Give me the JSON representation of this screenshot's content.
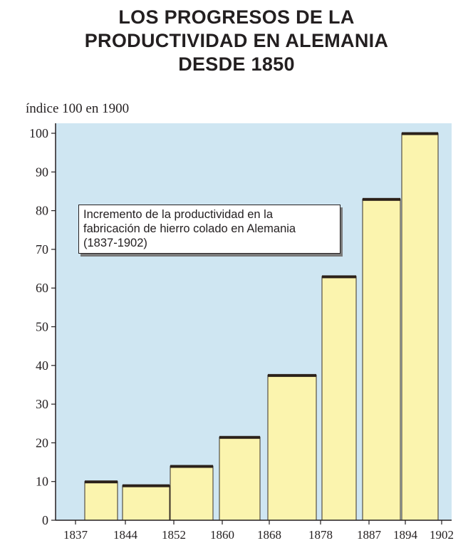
{
  "title_lines": [
    "LOS PROGRESOS DE LA",
    "PRODUCTIVIDAD EN ALEMANIA",
    "DESDE 1850"
  ],
  "chart_data": {
    "type": "bar",
    "title": "LOS PROGRESOS DE LA PRODUCTIVIDAD EN ALEMANIA DESDE 1850",
    "ylabel": "índice 100 en 1900",
    "xlabel": "",
    "ylim": [
      0,
      100
    ],
    "yticks": [
      0,
      10,
      20,
      30,
      40,
      50,
      60,
      70,
      80,
      90,
      100
    ],
    "x_tick_labels": [
      "1837",
      "1844",
      "1852",
      "1860",
      "1868",
      "1878",
      "1887",
      "1894",
      "1902"
    ],
    "categories": [
      "1837-1844",
      "1844-1852",
      "1852-1860",
      "1860-1868",
      "1868-1878",
      "1878-1887",
      "1887-1894",
      "1894-1902"
    ],
    "values": [
      10,
      9,
      14,
      21.5,
      37.5,
      63,
      83,
      100
    ],
    "grid": false,
    "annotation": [
      "Incremento de la productividad en la",
      "fabricación de hierro colado en Alemania",
      "(1837-1902)"
    ],
    "colors": {
      "plot_background": "#cfe6f2",
      "bar_fill": "#fbf4ae",
      "bar_top": "#2b211a",
      "axis": "#231f20"
    }
  }
}
